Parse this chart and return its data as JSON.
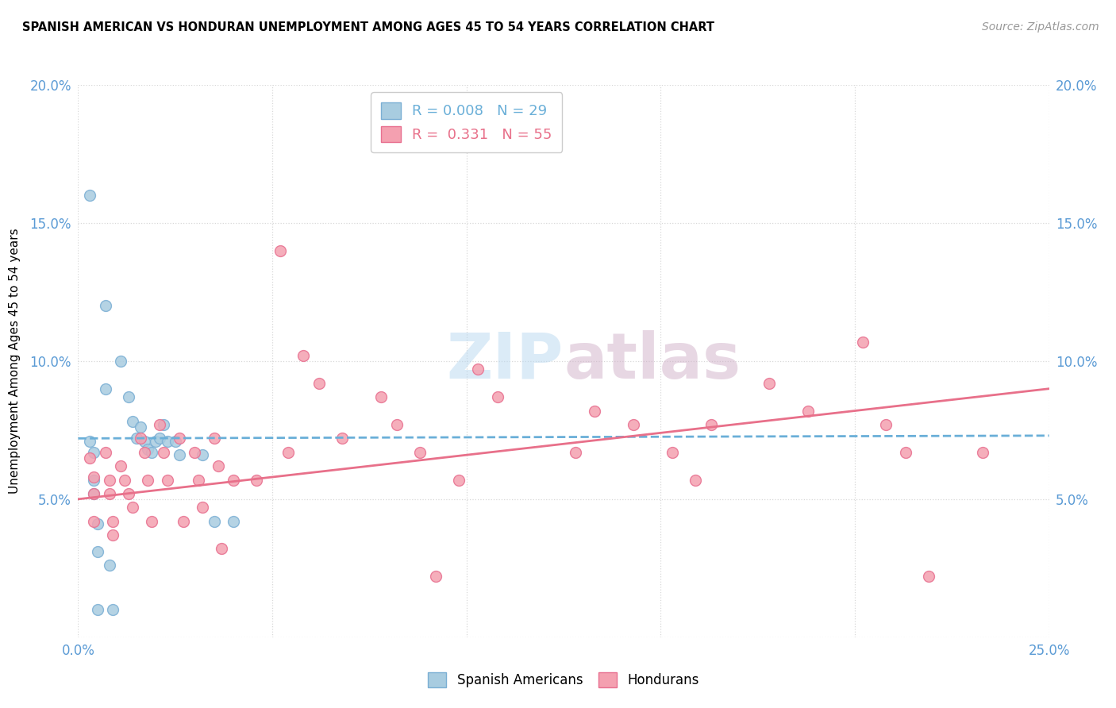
{
  "title": "SPANISH AMERICAN VS HONDURAN UNEMPLOYMENT AMONG AGES 45 TO 54 YEARS CORRELATION CHART",
  "source": "Source: ZipAtlas.com",
  "ylabel": "Unemployment Among Ages 45 to 54 years",
  "xlim": [
    0.0,
    0.25
  ],
  "ylim": [
    0.0,
    0.2
  ],
  "xticks": [
    0.0,
    0.05,
    0.1,
    0.15,
    0.2,
    0.25
  ],
  "yticks": [
    0.0,
    0.05,
    0.1,
    0.15,
    0.2
  ],
  "left_ytick_labels": [
    "",
    "5.0%",
    "10.0%",
    "15.0%",
    "20.0%"
  ],
  "right_ytick_labels": [
    "",
    "5.0%",
    "10.0%",
    "15.0%",
    "20.0%"
  ],
  "xtick_labels": [
    "0.0%",
    "",
    "",
    "",
    "",
    "25.0%"
  ],
  "blue_color": "#a8cce0",
  "pink_color": "#f4a0b0",
  "blue_edge_color": "#7bafd4",
  "pink_edge_color": "#e87090",
  "blue_line_color": "#6aafd8",
  "pink_line_color": "#e8708a",
  "legend_R_blue": "0.008",
  "legend_N_blue": "29",
  "legend_R_pink": "0.331",
  "legend_N_pink": "55",
  "tick_color": "#5b9bd5",
  "grid_color": "#d8d8d8",
  "blue_line_y0": 0.072,
  "blue_line_y1": 0.073,
  "pink_line_y0": 0.05,
  "pink_line_y1": 0.09,
  "spanish_americans_x": [
    0.003,
    0.007,
    0.007,
    0.011,
    0.013,
    0.014,
    0.015,
    0.016,
    0.017,
    0.018,
    0.019,
    0.02,
    0.021,
    0.022,
    0.023,
    0.025,
    0.026,
    0.032,
    0.035,
    0.04,
    0.003,
    0.004,
    0.004,
    0.004,
    0.005,
    0.005,
    0.005,
    0.008,
    0.009
  ],
  "spanish_americans_y": [
    0.16,
    0.12,
    0.09,
    0.1,
    0.087,
    0.078,
    0.072,
    0.076,
    0.071,
    0.068,
    0.067,
    0.071,
    0.072,
    0.077,
    0.071,
    0.071,
    0.066,
    0.066,
    0.042,
    0.042,
    0.071,
    0.067,
    0.057,
    0.052,
    0.041,
    0.031,
    0.01,
    0.026,
    0.01
  ],
  "hondurans_x": [
    0.003,
    0.004,
    0.004,
    0.004,
    0.007,
    0.008,
    0.008,
    0.009,
    0.009,
    0.011,
    0.012,
    0.013,
    0.014,
    0.016,
    0.017,
    0.018,
    0.019,
    0.021,
    0.022,
    0.023,
    0.026,
    0.027,
    0.03,
    0.031,
    0.032,
    0.035,
    0.036,
    0.037,
    0.04,
    0.046,
    0.052,
    0.054,
    0.058,
    0.062,
    0.068,
    0.078,
    0.082,
    0.088,
    0.092,
    0.098,
    0.103,
    0.108,
    0.128,
    0.133,
    0.143,
    0.153,
    0.159,
    0.163,
    0.178,
    0.188,
    0.202,
    0.208,
    0.213,
    0.219,
    0.233
  ],
  "hondurans_y": [
    0.065,
    0.058,
    0.052,
    0.042,
    0.067,
    0.057,
    0.052,
    0.042,
    0.037,
    0.062,
    0.057,
    0.052,
    0.047,
    0.072,
    0.067,
    0.057,
    0.042,
    0.077,
    0.067,
    0.057,
    0.072,
    0.042,
    0.067,
    0.057,
    0.047,
    0.072,
    0.062,
    0.032,
    0.057,
    0.057,
    0.14,
    0.067,
    0.102,
    0.092,
    0.072,
    0.087,
    0.077,
    0.067,
    0.022,
    0.057,
    0.097,
    0.087,
    0.067,
    0.082,
    0.077,
    0.067,
    0.057,
    0.077,
    0.092,
    0.082,
    0.107,
    0.077,
    0.067,
    0.022,
    0.067
  ]
}
